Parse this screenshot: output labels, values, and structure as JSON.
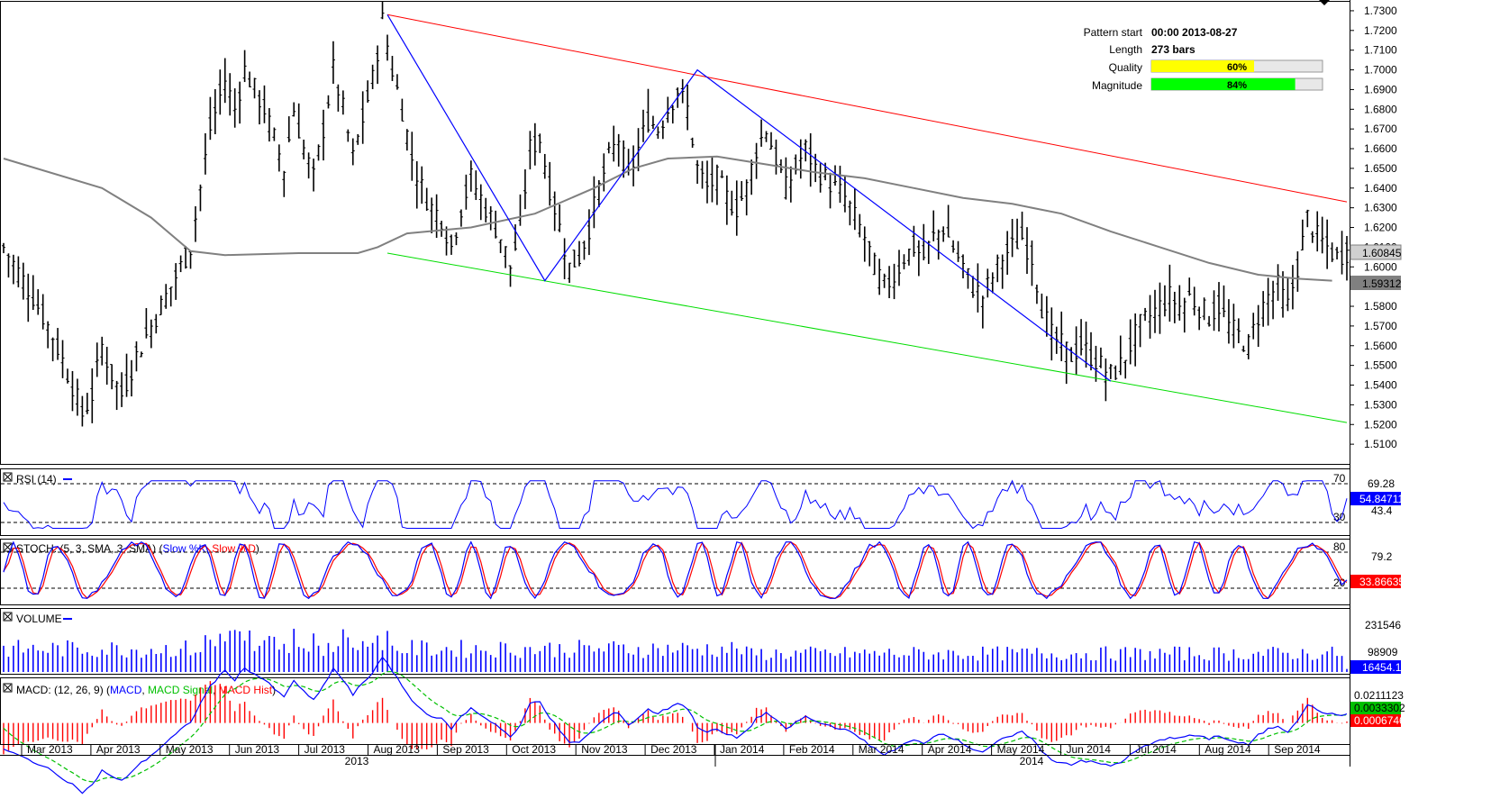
{
  "chart_data": {
    "type": "line",
    "price_axis": {
      "ylim": [
        1.5,
        1.735
      ],
      "ticks": [
        "1.7300",
        "1.7200",
        "1.7100",
        "1.7000",
        "1.6900",
        "1.6800",
        "1.6700",
        "1.6600",
        "1.6500",
        "1.6400",
        "1.6300",
        "1.6200",
        "1.6100",
        "1.6000",
        "1.5900",
        "1.5800",
        "1.5700",
        "1.5600",
        "1.5500",
        "1.5400",
        "1.5300",
        "1.5200",
        "1.5100"
      ],
      "tick_values": [
        1.73,
        1.72,
        1.71,
        1.7,
        1.69,
        1.68,
        1.67,
        1.66,
        1.65,
        1.64,
        1.63,
        1.62,
        1.61,
        1.6,
        1.59,
        1.58,
        1.57,
        1.56,
        1.55,
        1.54,
        1.53,
        1.52,
        1.51
      ],
      "last_price_label": "1.60845",
      "last_price": 1.60845,
      "ma_label": "1.59312",
      "ma_value": 1.59312
    },
    "price_path": [
      [
        0,
        1.61
      ],
      [
        6,
        1.585
      ],
      [
        10,
        1.565
      ],
      [
        14,
        1.54
      ],
      [
        16,
        1.525
      ],
      [
        18,
        1.535
      ],
      [
        20,
        1.56
      ],
      [
        22,
        1.545
      ],
      [
        24,
        1.535
      ],
      [
        27,
        1.555
      ],
      [
        30,
        1.57
      ],
      [
        33,
        1.585
      ],
      [
        36,
        1.6
      ],
      [
        38,
        1.61
      ],
      [
        40,
        1.64
      ],
      [
        42,
        1.67
      ],
      [
        45,
        1.695
      ],
      [
        47,
        1.68
      ],
      [
        49,
        1.7
      ],
      [
        51,
        1.69
      ],
      [
        53,
        1.68
      ],
      [
        55,
        1.665
      ],
      [
        57,
        1.65
      ],
      [
        59,
        1.68
      ],
      [
        61,
        1.66
      ],
      [
        63,
        1.645
      ],
      [
        65,
        1.67
      ],
      [
        67,
        1.7
      ],
      [
        69,
        1.68
      ],
      [
        71,
        1.655
      ],
      [
        73,
        1.675
      ],
      [
        75,
        1.695
      ],
      [
        77,
        1.725
      ],
      [
        79,
        1.7
      ],
      [
        81,
        1.68
      ],
      [
        83,
        1.655
      ],
      [
        85,
        1.64
      ],
      [
        87,
        1.63
      ],
      [
        89,
        1.625
      ],
      [
        91,
        1.61
      ],
      [
        93,
        1.63
      ],
      [
        95,
        1.645
      ],
      [
        97,
        1.635
      ],
      [
        99,
        1.625
      ],
      [
        101,
        1.615
      ],
      [
        103,
        1.6
      ],
      [
        105,
        1.62
      ],
      [
        107,
        1.66
      ],
      [
        109,
        1.665
      ],
      [
        111,
        1.64
      ],
      [
        113,
        1.62
      ],
      [
        115,
        1.6
      ],
      [
        117,
        1.605
      ],
      [
        119,
        1.62
      ],
      [
        121,
        1.64
      ],
      [
        123,
        1.655
      ],
      [
        125,
        1.665
      ],
      [
        127,
        1.645
      ],
      [
        129,
        1.66
      ],
      [
        131,
        1.675
      ],
      [
        133,
        1.67
      ],
      [
        135,
        1.68
      ],
      [
        137,
        1.69
      ],
      [
        139,
        1.68
      ],
      [
        141,
        1.65
      ],
      [
        143,
        1.64
      ],
      [
        145,
        1.645
      ],
      [
        147,
        1.635
      ],
      [
        149,
        1.63
      ],
      [
        151,
        1.64
      ],
      [
        153,
        1.66
      ],
      [
        155,
        1.67
      ],
      [
        157,
        1.655
      ],
      [
        159,
        1.64
      ],
      [
        161,
        1.65
      ],
      [
        163,
        1.66
      ],
      [
        165,
        1.65
      ],
      [
        167,
        1.645
      ],
      [
        169,
        1.64
      ],
      [
        171,
        1.635
      ],
      [
        173,
        1.625
      ],
      [
        175,
        1.615
      ],
      [
        177,
        1.6
      ],
      [
        179,
        1.59
      ],
      [
        181,
        1.595
      ],
      [
        183,
        1.605
      ],
      [
        185,
        1.61
      ],
      [
        187,
        1.605
      ],
      [
        189,
        1.615
      ],
      [
        191,
        1.62
      ],
      [
        193,
        1.61
      ],
      [
        195,
        1.6
      ],
      [
        197,
        1.59
      ],
      [
        199,
        1.585
      ],
      [
        201,
        1.595
      ],
      [
        203,
        1.605
      ],
      [
        205,
        1.61
      ],
      [
        207,
        1.615
      ],
      [
        209,
        1.605
      ],
      [
        211,
        1.58
      ],
      [
        213,
        1.565
      ],
      [
        215,
        1.56
      ],
      [
        217,
        1.555
      ],
      [
        219,
        1.56
      ],
      [
        221,
        1.555
      ],
      [
        223,
        1.55
      ],
      [
        225,
        1.545
      ],
      [
        227,
        1.55
      ],
      [
        229,
        1.56
      ],
      [
        231,
        1.57
      ],
      [
        233,
        1.575
      ],
      [
        235,
        1.58
      ],
      [
        237,
        1.585
      ],
      [
        239,
        1.58
      ],
      [
        241,
        1.585
      ],
      [
        243,
        1.58
      ],
      [
        245,
        1.575
      ],
      [
        247,
        1.58
      ],
      [
        249,
        1.57
      ],
      [
        251,
        1.565
      ],
      [
        253,
        1.56
      ],
      [
        255,
        1.575
      ],
      [
        257,
        1.585
      ],
      [
        259,
        1.59
      ],
      [
        261,
        1.58
      ],
      [
        263,
        1.6
      ],
      [
        265,
        1.625
      ],
      [
        267,
        1.615
      ],
      [
        269,
        1.61
      ],
      [
        271,
        1.605
      ],
      [
        273,
        1.608
      ]
    ],
    "ma_path": [
      [
        0,
        1.655
      ],
      [
        20,
        1.64
      ],
      [
        30,
        1.625
      ],
      [
        38,
        1.608
      ],
      [
        45,
        1.606
      ],
      [
        60,
        1.607
      ],
      [
        72,
        1.607
      ],
      [
        76,
        1.61
      ],
      [
        82,
        1.617
      ],
      [
        95,
        1.62
      ],
      [
        108,
        1.627
      ],
      [
        120,
        1.64
      ],
      [
        128,
        1.65
      ],
      [
        135,
        1.655
      ],
      [
        145,
        1.656
      ],
      [
        155,
        1.652
      ],
      [
        165,
        1.648
      ],
      [
        175,
        1.645
      ],
      [
        185,
        1.64
      ],
      [
        195,
        1.635
      ],
      [
        205,
        1.632
      ],
      [
        215,
        1.627
      ],
      [
        225,
        1.618
      ],
      [
        235,
        1.61
      ],
      [
        245,
        1.602
      ],
      [
        255,
        1.596
      ],
      [
        263,
        1.594
      ],
      [
        270,
        1.593
      ]
    ],
    "pattern_lines": {
      "upper_trendline": [
        [
          78,
          1.728
        ],
        [
          273,
          1.633
        ]
      ],
      "lower_trendline": [
        [
          78,
          1.607
        ],
        [
          273,
          1.521
        ]
      ],
      "zigzag": [
        [
          78,
          1.728
        ],
        [
          110,
          1.593
        ],
        [
          141,
          1.7
        ],
        [
          225,
          1.542
        ]
      ]
    },
    "pattern_info": {
      "pattern_start_label": "Pattern start",
      "pattern_start": "00:00 2013-08-27",
      "length_label": "Length",
      "length": "273 bars",
      "quality_label": "Quality",
      "quality_text": "60%",
      "quality": 0.6,
      "magnitude_label": "Magnitude",
      "magnitude_text": "84%",
      "magnitude": 0.84
    },
    "x_axis": {
      "months": [
        "Mar 2013",
        "Apr 2013",
        "May 2013",
        "Jun 2013",
        "Jul 2013",
        "Aug 2013",
        "Sep 2013",
        "Oct 2013",
        "Nov 2013",
        "Dec 2013",
        "Jan 2014",
        "Feb 2014",
        "Mar 2014",
        "Apr 2014",
        "May 2014",
        "Jun 2014",
        "Jul 2014",
        "Aug 2014",
        "Sep 2014"
      ],
      "years": [
        "2013",
        "2014"
      ]
    },
    "rsi": {
      "title": "RSI (14)",
      "levels": [
        "70",
        "30"
      ],
      "level_values": [
        70,
        30
      ],
      "ticks": [
        "69.28",
        "43.4"
      ],
      "tick_values": [
        69.28,
        43.4
      ],
      "value_label": "54.84711",
      "value": 54.84711
    },
    "stoch": {
      "title_prefix": "STOCH: (5, 3, SMA, 3, SMA) (",
      "k_name": "Slow %K",
      "d_name": "Slow %D",
      "title_suffix": ")",
      "levels": [
        "80",
        "20"
      ],
      "level_values": [
        80,
        20
      ],
      "tick": "79.2",
      "value_label": "33.86635",
      "value": 33.86635
    },
    "volume": {
      "title": "VOLUME",
      "ticks": [
        "231546",
        "98909"
      ],
      "tick_values": [
        231546,
        98909
      ],
      "value_label": "16454.1",
      "value": 16454.1
    },
    "macd": {
      "title_prefix": "MACD: (12, 26, 9) (",
      "macd_name": "MACD",
      "signal_name": "MACD Signal",
      "hist_name": "MACD Hist",
      "title_suffix": ")",
      "top_tick": "0.0211123",
      "signal_label": "0.0033302",
      "hist_label": "0.0006746",
      "top_value": 0.0211123,
      "signal_value": 0.0033302,
      "hist_value": 0.0006746
    },
    "colors": {
      "bars": "#000000",
      "moving_average": "#808080",
      "upper_trendline": "#ff0000",
      "lower_trendline": "#00dd00",
      "zigzag": "#0000ff",
      "rsi": "#0000ff",
      "stoch_k": "#0000ff",
      "stoch_d": "#ff0000",
      "volume": "#0000ff",
      "macd": "#0000ff",
      "macd_signal": "#00c000",
      "macd_hist": "#ff0000",
      "quality_bar": "#ffff00",
      "magnitude_bar": "#00ff00"
    }
  }
}
